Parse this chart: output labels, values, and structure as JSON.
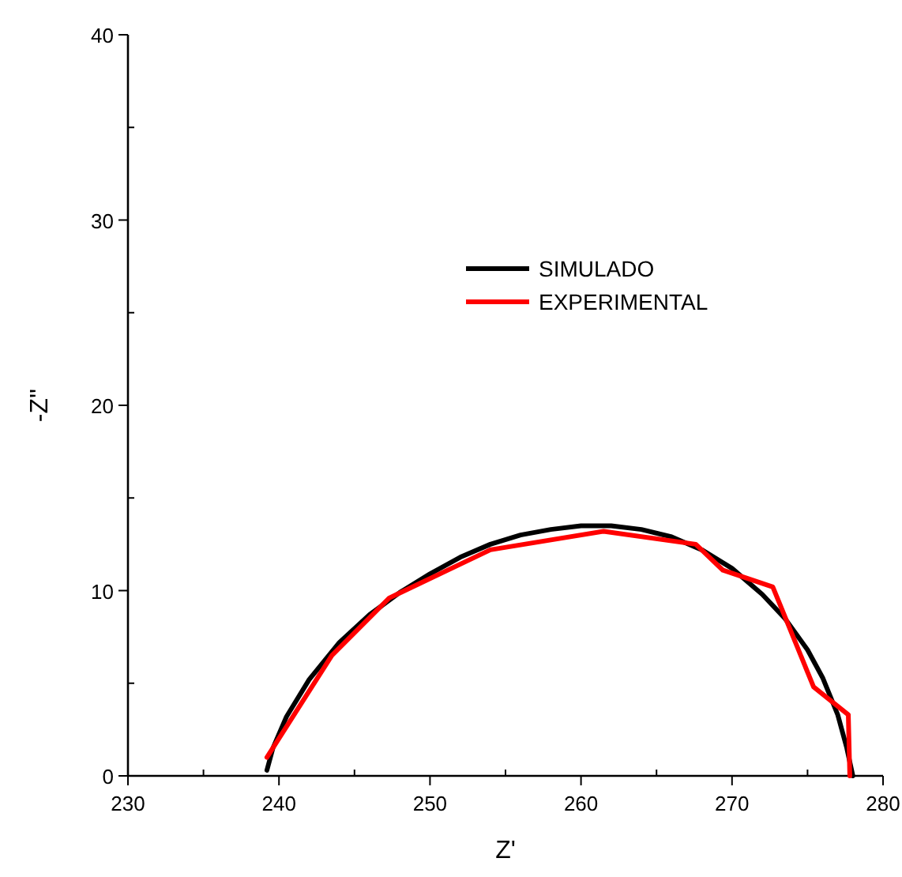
{
  "chart_data": {
    "type": "line",
    "xlabel": "Z'",
    "ylabel": "-Z''",
    "xlim": [
      230,
      280
    ],
    "ylim": [
      0,
      40
    ],
    "xticks": [
      230,
      240,
      250,
      260,
      270,
      280
    ],
    "yticks": [
      0,
      10,
      20,
      30,
      40
    ],
    "grid": false,
    "legend": "top right",
    "marker": "none",
    "line_style": "solid",
    "series": [
      {
        "name": "SIMULADO",
        "color": "#000000",
        "x": [
          239.2,
          239.6,
          240.5,
          242,
          244,
          246,
          248,
          250,
          252,
          254,
          256,
          258,
          260,
          262,
          264,
          266,
          268,
          270,
          272,
          273.5,
          275,
          276,
          277,
          277.6,
          278
        ],
        "values": [
          0.3,
          1.5,
          3.2,
          5.2,
          7.2,
          8.7,
          9.9,
          10.9,
          11.8,
          12.5,
          13.0,
          13.3,
          13.5,
          13.5,
          13.3,
          12.9,
          12.2,
          11.2,
          9.8,
          8.5,
          6.8,
          5.3,
          3.3,
          1.5,
          0
        ]
      },
      {
        "name": "EXPERIMENTAL",
        "color": "#ff0000",
        "x": [
          239.2,
          243.5,
          247.3,
          254,
          261.5,
          267.6,
          269.4,
          272.7,
          275.4,
          277.7,
          277.8
        ],
        "values": [
          1.0,
          6.5,
          9.6,
          12.2,
          13.2,
          12.5,
          11.1,
          10.2,
          4.8,
          3.3,
          0
        ]
      }
    ]
  }
}
